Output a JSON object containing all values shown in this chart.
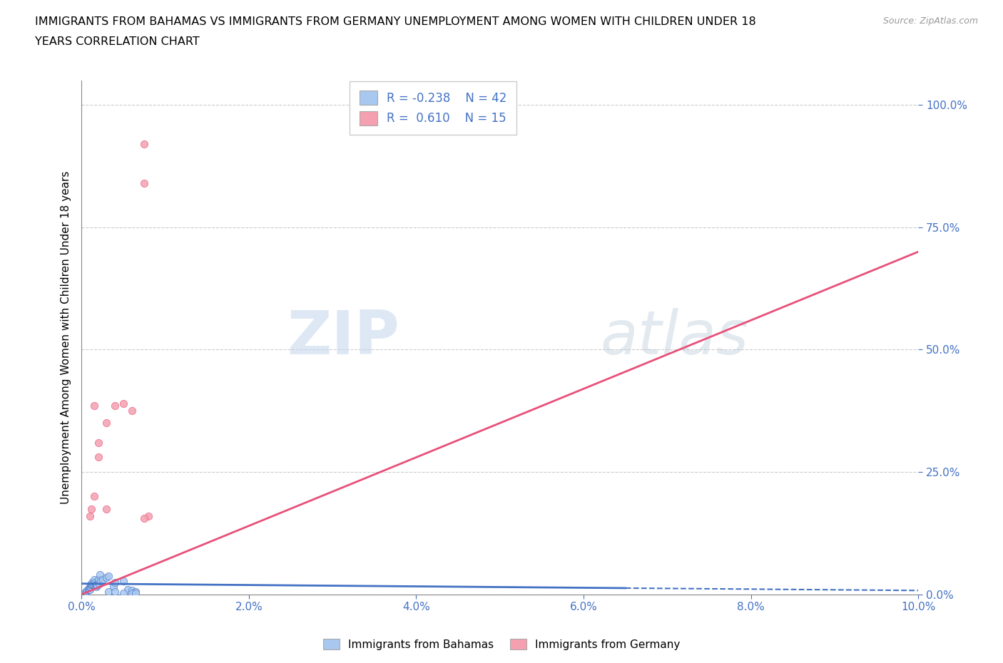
{
  "title_line1": "IMMIGRANTS FROM BAHAMAS VS IMMIGRANTS FROM GERMANY UNEMPLOYMENT AMONG WOMEN WITH CHILDREN UNDER 18",
  "title_line2": "YEARS CORRELATION CHART",
  "source_text": "Source: ZipAtlas.com",
  "ylabel": "Unemployment Among Women with Children Under 18 years",
  "xlabel_bottom": "Immigrants from Bahamas",
  "xlabel_bottom2": "Immigrants from Germany",
  "legend_r1": "R = -0.238",
  "legend_n1": "N = 42",
  "legend_r2": "R =  0.610",
  "legend_n2": "N = 15",
  "bahamas_color": "#a8c8f0",
  "germany_color": "#f4a0b0",
  "bahamas_edge_color": "#4472c4",
  "germany_edge_color": "#e8507a",
  "trend_line_blue_solid": "#4472c4",
  "trend_line_pink": "#e8507a",
  "watermark": "ZIPatlas",
  "xlim": [
    0.0,
    0.1
  ],
  "ylim": [
    0.0,
    1.05
  ],
  "yticks": [
    0.0,
    0.25,
    0.5,
    0.75,
    1.0
  ],
  "ytick_labels": [
    "0.0%",
    "25.0%",
    "50.0%",
    "75.0%",
    "100.0%"
  ],
  "xticks": [
    0.0,
    0.02,
    0.04,
    0.06,
    0.08,
    0.1
  ],
  "xtick_labels": [
    "0.0%",
    "2.0%",
    "4.0%",
    "6.0%",
    "8.0%",
    "10.0%"
  ],
  "bahamas_x": [
    0.0005,
    0.0006,
    0.0007,
    0.0008,
    0.0008,
    0.0009,
    0.001,
    0.001,
    0.0011,
    0.0011,
    0.0012,
    0.0012,
    0.0013,
    0.0013,
    0.0014,
    0.0014,
    0.0015,
    0.0015,
    0.0016,
    0.0017,
    0.0018,
    0.0018,
    0.0019,
    0.002,
    0.002,
    0.0021,
    0.0022,
    0.0023,
    0.0025,
    0.003,
    0.0032,
    0.0038,
    0.004,
    0.005,
    0.0055,
    0.006,
    0.0065,
    0.0032,
    0.004,
    0.005,
    0.006,
    0.0065
  ],
  "bahamas_y": [
    0.005,
    0.005,
    0.008,
    0.01,
    0.012,
    0.01,
    0.01,
    0.015,
    0.015,
    0.02,
    0.02,
    0.022,
    0.02,
    0.025,
    0.02,
    0.022,
    0.025,
    0.03,
    0.025,
    0.02,
    0.015,
    0.02,
    0.018,
    0.025,
    0.03,
    0.022,
    0.04,
    0.028,
    0.03,
    0.035,
    0.038,
    0.015,
    0.025,
    0.028,
    0.01,
    0.008,
    0.005,
    0.005,
    0.005,
    0.003,
    0.003,
    0.002
  ],
  "germany_x": [
    0.001,
    0.0012,
    0.0015,
    0.002,
    0.002,
    0.003,
    0.004,
    0.005,
    0.006,
    0.0075,
    0.0075,
    0.008,
    0.0075,
    0.003,
    0.0015
  ],
  "germany_y": [
    0.16,
    0.175,
    0.2,
    0.28,
    0.31,
    0.35,
    0.385,
    0.39,
    0.375,
    0.84,
    0.92,
    0.16,
    0.155,
    0.175,
    0.385
  ],
  "bahamas_trend_x0": 0.0,
  "bahamas_trend_x1": 0.1,
  "bahamas_trend_y0": 0.022,
  "bahamas_trend_y1": 0.008,
  "bahamas_trend_solid_end": 0.065,
  "germany_trend_x0": 0.0,
  "germany_trend_x1": 0.1,
  "germany_trend_y0": 0.0,
  "germany_trend_y1": 0.7
}
